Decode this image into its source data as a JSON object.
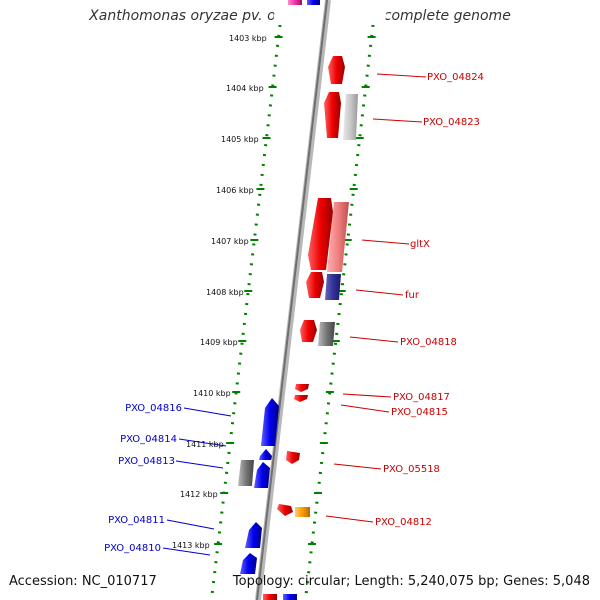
{
  "title": "Xanthomonas oryzae pv. oryzae PXO99A, complete genome",
  "accession": "Accession: NC_010717",
  "topology": "Topology: circular; Length: 5,240,075 bp; Genes: 5,048",
  "ticks": [
    "1403 kbp",
    "1404 kbp",
    "1405 kbp",
    "1406 kbp",
    "1407 kbp",
    "1408 kbp",
    "1409 kbp",
    "1410 kbp",
    "1411 kbp",
    "1412 kbp",
    "1413 kbp"
  ],
  "genes_forward": [
    "PXO_04824",
    "PXO_04823",
    "gltX",
    "fur",
    "PXO_04818",
    "PXO_04817",
    "PXO_04815",
    "PXO_05518",
    "PXO_04812"
  ],
  "genes_reverse": [
    "PXO_04816",
    "PXO_04814",
    "PXO_04813",
    "PXO_04811",
    "PXO_04810"
  ],
  "colors": {
    "forward_label": "#cc0000",
    "reverse_label": "#0000cc",
    "tick": "#008000",
    "backbone": "#888888",
    "gene_red": "#ee0000",
    "gene_blue": "#0000ee",
    "gene_grey": "#777777",
    "gene_pink": "#f08080",
    "gene_navy": "#333399",
    "gene_orange": "#ff9900",
    "gene_magenta": "#ee33aa"
  }
}
